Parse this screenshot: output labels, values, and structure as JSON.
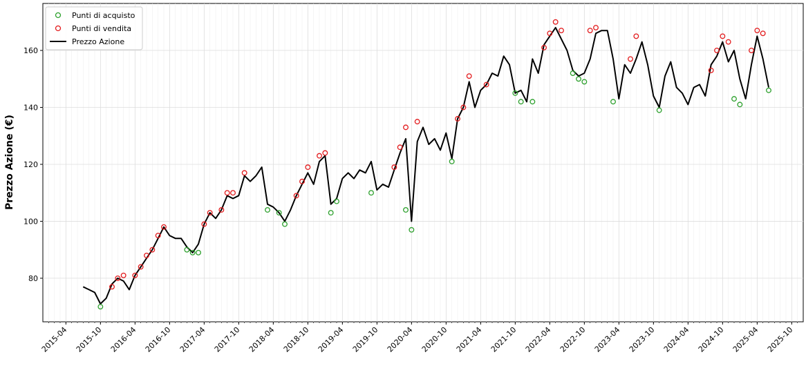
{
  "chart_data": {
    "type": "line",
    "ylabel": "Prezzo Azione (€)",
    "xlim": [
      "2014-12",
      "2025-12"
    ],
    "xticks": [
      "2015-04",
      "2015-10",
      "2016-04",
      "2016-10",
      "2017-04",
      "2017-10",
      "2018-04",
      "2018-10",
      "2019-04",
      "2019-10",
      "2020-04",
      "2020-10",
      "2021-04",
      "2021-10",
      "2022-04",
      "2022-10",
      "2023-04",
      "2023-10",
      "2024-04",
      "2024-10",
      "2025-04",
      "2025-10"
    ],
    "ylim": [
      64.7,
      176.5
    ],
    "yticks": [
      80,
      100,
      120,
      140,
      160
    ],
    "grid": true,
    "legend": "upper left",
    "series": [
      {
        "name": "Punti di acquisto",
        "type": "scatter",
        "color": "#2ca02c",
        "x": [
          "2015-10",
          "2017-01",
          "2017-02",
          "2017-03",
          "2018-03",
          "2018-05",
          "2018-06",
          "2019-02",
          "2019-03",
          "2019-09",
          "2020-03",
          "2020-04",
          "2020-11",
          "2021-10",
          "2021-11",
          "2022-01",
          "2022-08",
          "2022-09",
          "2022-10",
          "2023-03",
          "2023-11",
          "2024-12",
          "2025-01",
          "2025-06"
        ],
        "values": [
          70,
          90,
          89,
          89,
          104,
          103,
          99,
          103,
          107,
          110,
          104,
          97,
          121,
          145,
          142,
          142,
          152,
          150,
          149,
          142,
          139,
          143,
          141,
          146
        ]
      },
      {
        "name": "Punti di vendita",
        "type": "scatter",
        "color": "#e31a1c",
        "x": [
          "2015-12",
          "2016-01",
          "2016-02",
          "2016-04",
          "2016-05",
          "2016-06",
          "2016-07",
          "2016-08",
          "2016-09",
          "2017-04",
          "2017-05",
          "2017-07",
          "2017-08",
          "2017-09",
          "2017-11",
          "2018-08",
          "2018-09",
          "2018-10",
          "2018-12",
          "2019-01",
          "2020-01",
          "2020-02",
          "2020-03",
          "2020-05",
          "2020-12",
          "2021-01",
          "2021-02",
          "2021-05",
          "2022-03",
          "2022-04",
          "2022-05",
          "2022-06",
          "2022-11",
          "2022-12",
          "2023-06",
          "2023-07",
          "2024-08",
          "2024-09",
          "2024-10",
          "2024-11",
          "2025-03",
          "2025-04",
          "2025-05"
        ],
        "values": [
          77,
          80,
          81,
          81,
          84,
          88,
          90,
          95,
          98,
          99,
          103,
          104,
          110,
          110,
          117,
          109,
          114,
          119,
          123,
          124,
          119,
          126,
          133,
          135,
          136,
          140,
          151,
          148,
          161,
          166,
          170,
          167,
          167,
          168,
          157,
          165,
          153,
          160,
          165,
          163,
          160,
          167,
          166
        ]
      },
      {
        "name": "Prezzo Azione",
        "type": "line",
        "color": "#000000",
        "x": [
          "2015-07",
          "2015-08",
          "2015-09",
          "2015-10",
          "2015-11",
          "2015-12",
          "2016-01",
          "2016-02",
          "2016-03",
          "2016-04",
          "2016-05",
          "2016-06",
          "2016-07",
          "2016-08",
          "2016-09",
          "2016-10",
          "2016-11",
          "2016-12",
          "2017-01",
          "2017-02",
          "2017-03",
          "2017-04",
          "2017-05",
          "2017-06",
          "2017-07",
          "2017-08",
          "2017-09",
          "2017-10",
          "2017-11",
          "2017-12",
          "2018-01",
          "2018-02",
          "2018-03",
          "2018-04",
          "2018-05",
          "2018-06",
          "2018-07",
          "2018-08",
          "2018-09",
          "2018-10",
          "2018-11",
          "2018-12",
          "2019-01",
          "2019-02",
          "2019-03",
          "2019-04",
          "2019-05",
          "2019-06",
          "2019-07",
          "2019-08",
          "2019-09",
          "2019-10",
          "2019-11",
          "2019-12",
          "2020-01",
          "2020-02",
          "2020-03",
          "2020-04",
          "2020-05",
          "2020-06",
          "2020-07",
          "2020-08",
          "2020-09",
          "2020-10",
          "2020-11",
          "2020-12",
          "2021-01",
          "2021-02",
          "2021-03",
          "2021-04",
          "2021-05",
          "2021-06",
          "2021-07",
          "2021-08",
          "2021-09",
          "2021-10",
          "2021-11",
          "2021-12",
          "2022-01",
          "2022-02",
          "2022-03",
          "2022-04",
          "2022-05",
          "2022-06",
          "2022-07",
          "2022-08",
          "2022-09",
          "2022-10",
          "2022-11",
          "2022-12",
          "2023-01",
          "2023-02",
          "2023-03",
          "2023-04",
          "2023-05",
          "2023-06",
          "2023-07",
          "2023-08",
          "2023-09",
          "2023-10",
          "2023-11",
          "2023-12",
          "2024-01",
          "2024-02",
          "2024-03",
          "2024-04",
          "2024-05",
          "2024-06",
          "2024-07",
          "2024-08",
          "2024-09",
          "2024-10",
          "2024-11",
          "2024-12",
          "2025-01",
          "2025-02",
          "2025-03",
          "2025-04",
          "2025-05",
          "2025-06"
        ],
        "values": [
          77,
          76,
          75,
          71,
          73,
          78,
          80,
          79,
          76,
          81,
          84,
          87,
          90,
          94,
          98,
          95,
          94,
          94,
          91,
          89,
          92,
          99,
          103,
          101,
          104,
          109,
          108,
          109,
          116,
          114,
          116,
          119,
          106,
          105,
          103,
          100,
          104,
          109,
          113,
          117,
          113,
          121,
          123,
          106,
          108,
          115,
          117,
          115,
          118,
          117,
          121,
          111,
          113,
          112,
          118,
          124,
          129,
          100,
          128,
          133,
          127,
          129,
          125,
          131,
          122,
          136,
          140,
          149,
          140,
          146,
          148,
          152,
          151,
          158,
          155,
          145,
          146,
          142,
          157,
          152,
          162,
          165,
          168,
          164,
          160,
          153,
          151,
          152,
          157,
          166,
          167,
          167,
          157,
          143,
          155,
          152,
          157,
          163,
          155,
          144,
          140,
          151,
          156,
          147,
          145,
          141,
          147,
          148,
          144,
          155,
          158,
          163,
          156,
          160,
          150,
          143,
          155,
          165,
          157,
          147
        ]
      }
    ]
  }
}
